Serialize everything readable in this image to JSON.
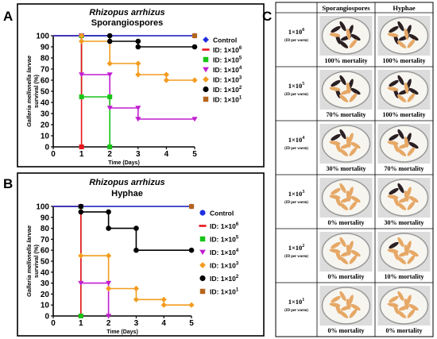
{
  "panels": {
    "A": {
      "letter": "A",
      "title_species": "Rhizopus arrhizus",
      "title_form": "Sporangiospores"
    },
    "B": {
      "letter": "B",
      "title_species": "Rhizopus arrhizus",
      "title_form": "Hyphae"
    },
    "C": {
      "letter": "C"
    }
  },
  "chart_data": [
    {
      "type": "line",
      "title": "Rhizopus arrhizus Sporangiospores",
      "xlabel": "Time (Days)",
      "ylabel": "Galleria mellonella larvae survival (%)",
      "xlim": [
        0,
        5
      ],
      "ylim": [
        0,
        100
      ],
      "x_ticks": [
        "0",
        "1",
        "2",
        "3",
        "4",
        "5"
      ],
      "y_ticks": [
        "0",
        "10",
        "20",
        "30",
        "40",
        "50",
        "60",
        "70",
        "80",
        "90",
        "100"
      ],
      "legend_position": "right",
      "series": [
        {
          "name": "Control",
          "legend_text": "Control",
          "color": "#1f2fe0",
          "marker": "diamond",
          "points": [
            [
              0,
              100
            ],
            [
              5,
              100
            ]
          ]
        },
        {
          "name": "ID: 1×10^6",
          "legend_text": "ID: 1×10",
          "exp": "6",
          "color": "#e8141b",
          "marker": "dash",
          "points": [
            [
              0,
              100
            ],
            [
              1,
              100
            ],
            [
              1,
              0
            ]
          ]
        },
        {
          "name": "ID: 1×10^5",
          "legend_text": "ID: 1×10",
          "exp": "5",
          "color": "#18c418",
          "marker": "square",
          "points": [
            [
              0,
              100
            ],
            [
              1,
              100
            ],
            [
              1,
              45
            ],
            [
              2,
              45
            ],
            [
              2,
              0
            ]
          ]
        },
        {
          "name": "ID: 1×10^4",
          "legend_text": "ID: 1×10",
          "exp": "4",
          "color": "#c21dd1",
          "marker": "tri-down",
          "points": [
            [
              0,
              100
            ],
            [
              1,
              100
            ],
            [
              1,
              65
            ],
            [
              2,
              65
            ],
            [
              2,
              35
            ],
            [
              3,
              35
            ],
            [
              3,
              25
            ],
            [
              5,
              25
            ]
          ]
        },
        {
          "name": "ID: 1×10^3",
          "legend_text": "ID: 1×10",
          "exp": "3",
          "color": "#f39c1f",
          "marker": "diamond",
          "points": [
            [
              0,
              100
            ],
            [
              1,
              100
            ],
            [
              1,
              95
            ],
            [
              2,
              95
            ],
            [
              2,
              75
            ],
            [
              3,
              75
            ],
            [
              3,
              65
            ],
            [
              4,
              65
            ],
            [
              4,
              60
            ],
            [
              5,
              60
            ]
          ]
        },
        {
          "name": "ID: 1×10^2",
          "legend_text": "ID: 1×10",
          "exp": "2",
          "color": "#000000",
          "marker": "circle",
          "points": [
            [
              0,
              100
            ],
            [
              2,
              100
            ],
            [
              2,
              95
            ],
            [
              3,
              95
            ],
            [
              3,
              90
            ],
            [
              5,
              90
            ]
          ]
        },
        {
          "name": "ID: 1×10^1",
          "legend_text": "ID: 1×10",
          "exp": "1",
          "color": "#b5651d",
          "marker": "square",
          "points": [
            [
              0,
              100
            ],
            [
              5,
              100
            ]
          ]
        }
      ]
    },
    {
      "type": "line",
      "title": "Rhizopus arrhizus Hyphae",
      "xlabel": "Time (Days)",
      "ylabel": "Galleria mellonella larvae survival (%)",
      "xlim": [
        0,
        5
      ],
      "ylim": [
        0,
        100
      ],
      "x_ticks": [
        "0",
        "1",
        "2",
        "3",
        "4",
        "5"
      ],
      "y_ticks": [
        "0",
        "10",
        "20",
        "30",
        "40",
        "50",
        "60",
        "70",
        "80",
        "90",
        "100"
      ],
      "legend_position": "right",
      "series": [
        {
          "name": "Control",
          "legend_text": "Control",
          "color": "#1f2fe0",
          "marker": "circle",
          "points": [
            [
              0,
              100
            ],
            [
              5,
              100
            ]
          ]
        },
        {
          "name": "ID: 1×10^6",
          "legend_text": "ID: 1×10",
          "exp": "6",
          "color": "#e8141b",
          "marker": "dash",
          "points": [
            [
              0,
              100
            ],
            [
              1,
              100
            ],
            [
              1,
              0
            ]
          ]
        },
        {
          "name": "ID: 1×10^5",
          "legend_text": "ID: 1×10",
          "exp": "5",
          "color": "#18c418",
          "marker": "square",
          "points": [
            [
              0,
              100
            ],
            [
              1,
              100
            ],
            [
              1,
              0
            ]
          ]
        },
        {
          "name": "ID: 1×10^4",
          "legend_text": "ID: 1×10",
          "exp": "4",
          "color": "#c21dd1",
          "marker": "tri-down",
          "points": [
            [
              0,
              100
            ],
            [
              1,
              100
            ],
            [
              1,
              30
            ],
            [
              2,
              30
            ],
            [
              2,
              0
            ]
          ]
        },
        {
          "name": "ID: 1×10^3",
          "legend_text": "ID: 1×10",
          "exp": "3",
          "color": "#f39c1f",
          "marker": "diamond",
          "points": [
            [
              0,
              100
            ],
            [
              1,
              100
            ],
            [
              1,
              55
            ],
            [
              2,
              55
            ],
            [
              2,
              25
            ],
            [
              3,
              25
            ],
            [
              3,
              15
            ],
            [
              4,
              15
            ],
            [
              4,
              10
            ],
            [
              5,
              10
            ]
          ]
        },
        {
          "name": "ID: 1×10^2",
          "legend_text": "ID: 1×10",
          "exp": "2",
          "color": "#000000",
          "marker": "circle",
          "points": [
            [
              0,
              100
            ],
            [
              1,
              100
            ],
            [
              1,
              95
            ],
            [
              2,
              95
            ],
            [
              2,
              80
            ],
            [
              3,
              80
            ],
            [
              3,
              60
            ],
            [
              5,
              60
            ]
          ]
        },
        {
          "name": "ID: 1×10^1",
          "legend_text": "ID: 1×10",
          "exp": "1",
          "color": "#b5651d",
          "marker": "square",
          "points": [
            [
              0,
              100
            ],
            [
              5,
              100
            ]
          ]
        }
      ]
    }
  ],
  "table": {
    "headers": [
      "Sporangiospores",
      "Hyphae"
    ],
    "rows": [
      {
        "dose_base": "1×10",
        "exp": "6",
        "dose_sub": "(ID per worm)",
        "spore_mortality": "100% mortality",
        "hyphae_mortality": "100% mortality",
        "spore_dark": 7,
        "hyphae_dark": 6
      },
      {
        "dose_base": "1×10",
        "exp": "5",
        "dose_sub": "(ID per worm)",
        "spore_mortality": "70% mortality",
        "hyphae_mortality": "100% mortality",
        "spore_dark": 5,
        "hyphae_dark": 6
      },
      {
        "dose_base": "1×10",
        "exp": "4",
        "dose_sub": "(ID per worm)",
        "spore_mortality": "30% mortality",
        "hyphae_mortality": "70% mortality",
        "spore_dark": 2,
        "hyphae_dark": 4
      },
      {
        "dose_base": "1×10",
        "exp": "3",
        "dose_sub": "(ID per worm)",
        "spore_mortality": "0% mortality",
        "hyphae_mortality": "30% mortality",
        "spore_dark": 0,
        "hyphae_dark": 2
      },
      {
        "dose_base": "1×10",
        "exp": "2",
        "dose_sub": "(ID per worm)",
        "spore_mortality": "0% mortality",
        "hyphae_mortality": "10% mortality",
        "spore_dark": 0,
        "hyphae_dark": 1
      },
      {
        "dose_base": "1×10",
        "exp": "1",
        "dose_sub": "(ID per worm)",
        "spore_mortality": "0% mortality",
        "hyphae_mortality": "0% mortality",
        "spore_dark": 0,
        "hyphae_dark": 0
      }
    ]
  }
}
